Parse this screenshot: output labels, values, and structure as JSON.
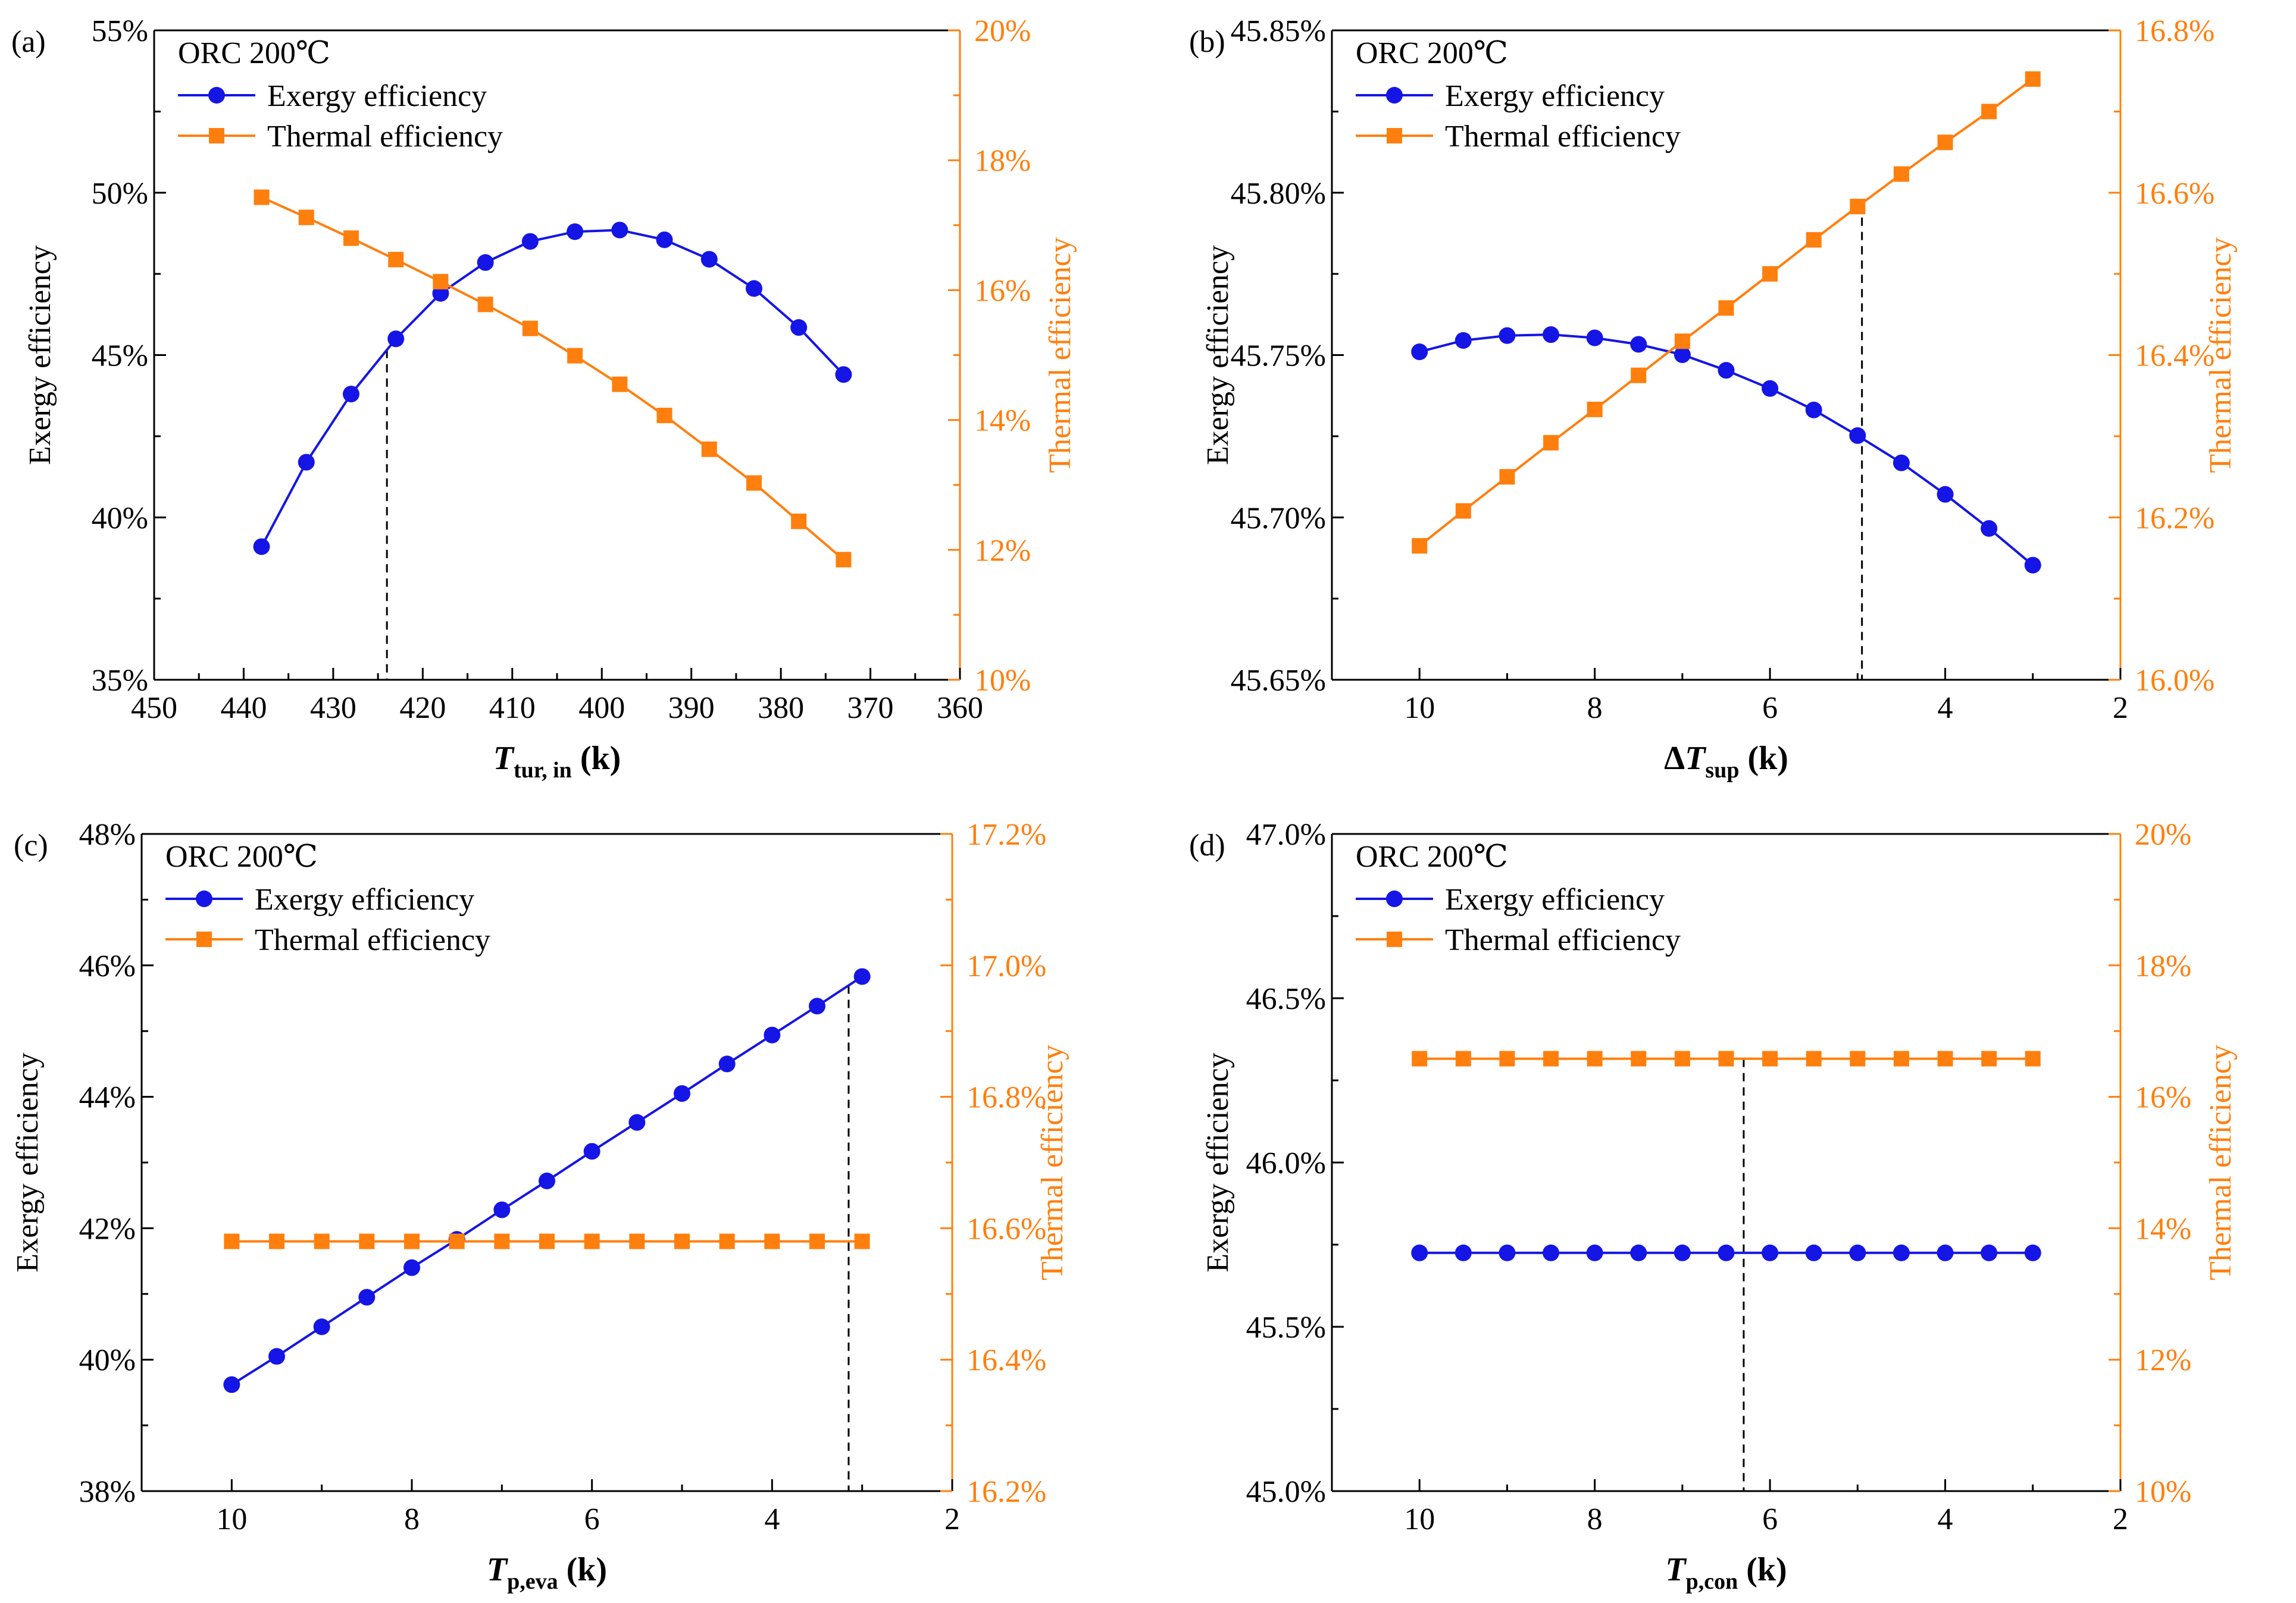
{
  "colors": {
    "exergy": "#1515e6",
    "thermal": "#ff7f0e",
    "axis": "#000000"
  },
  "chart_data": [
    {
      "type": "line",
      "panel_label": "(a)",
      "legend_title": "ORC 200℃",
      "legend": {
        "exergy": "Exergy efficiency",
        "thermal": "Thermal efficiency"
      },
      "xlabel": {
        "main": "T",
        "sub": "tur, in",
        "unit": "(k)",
        "prefix": ""
      },
      "ylabel": "Exergy efficiency",
      "y2label": "Thermal efficiency",
      "xlim": [
        450,
        360
      ],
      "xticks": [
        450,
        440,
        430,
        420,
        410,
        400,
        390,
        380,
        370,
        360
      ],
      "xtick_labels": [
        "450",
        "440",
        "430",
        "420",
        "410",
        "400",
        "390",
        "380",
        "370",
        "360"
      ],
      "ylim": [
        35,
        55
      ],
      "yticks": [
        35,
        40,
        45,
        50,
        55
      ],
      "ytick_labels": [
        "35%",
        "40%",
        "45%",
        "50%",
        "55%"
      ],
      "y2lim": [
        10,
        20
      ],
      "y2ticks": [
        10,
        12,
        14,
        16,
        18,
        20
      ],
      "y2tick_labels": [
        "10%",
        "12%",
        "14%",
        "16%",
        "18%",
        "20%"
      ],
      "dashed_x": 424,
      "dashed_top_series": "exergy",
      "series": [
        {
          "name": "Exergy efficiency",
          "key": "exergy",
          "axis": "left",
          "x": [
            438,
            433,
            428,
            423,
            418,
            413,
            408,
            403,
            398,
            393,
            388,
            383,
            378,
            373
          ],
          "values": [
            39.1,
            41.7,
            43.8,
            45.5,
            46.9,
            47.85,
            48.5,
            48.8,
            48.85,
            48.55,
            47.95,
            47.05,
            45.85,
            44.4
          ]
        },
        {
          "name": "Thermal efficiency",
          "key": "thermal",
          "axis": "right",
          "x": [
            438,
            433,
            428,
            423,
            418,
            413,
            408,
            403,
            398,
            393,
            388,
            383,
            378,
            373
          ],
          "values": [
            17.43,
            17.12,
            16.8,
            16.47,
            16.13,
            15.78,
            15.41,
            14.99,
            14.55,
            14.07,
            13.55,
            13.03,
            12.44,
            11.85
          ]
        }
      ]
    },
    {
      "type": "line",
      "panel_label": "(b)",
      "legend_title": "ORC 200℃",
      "legend": {
        "exergy": "Exergy efficiency",
        "thermal": "Thermal efficiency"
      },
      "xlabel": {
        "main": "T",
        "sub": "sup",
        "unit": "(k)",
        "prefix": "Δ"
      },
      "ylabel": "Exergy efficiency",
      "y2label": "Thermal efficiency",
      "xlim": [
        11,
        2
      ],
      "xticks": [
        10,
        8,
        6,
        4,
        2
      ],
      "xtick_labels": [
        "10",
        "8",
        "6",
        "4",
        "2"
      ],
      "ylim": [
        45.65,
        45.85
      ],
      "yticks": [
        45.65,
        45.7,
        45.75,
        45.8,
        45.85
      ],
      "ytick_labels": [
        "45.65%",
        "45.70%",
        "45.75%",
        "45.80%",
        "45.85%"
      ],
      "y2lim": [
        16.0,
        16.8
      ],
      "y2ticks": [
        16.0,
        16.2,
        16.4,
        16.6,
        16.8
      ],
      "y2tick_labels": [
        "16.0%",
        "16.2%",
        "16.4%",
        "16.6%",
        "16.8%"
      ],
      "dashed_x": 4.95,
      "dashed_top_series": "thermal",
      "series": [
        {
          "name": "Exergy efficiency",
          "key": "exergy",
          "axis": "left",
          "x": [
            10,
            9.5,
            9,
            8.5,
            8,
            7.5,
            7,
            6.5,
            6,
            5.5,
            5,
            4.5,
            4,
            3.5,
            3
          ],
          "values": [
            45.751,
            45.7545,
            45.756,
            45.7563,
            45.7553,
            45.7533,
            45.7501,
            45.7453,
            45.7397,
            45.7331,
            45.7252,
            45.7168,
            45.7071,
            45.6966,
            45.6853
          ]
        },
        {
          "name": "Thermal efficiency",
          "key": "thermal",
          "axis": "right",
          "x": [
            10,
            9.5,
            9,
            8.5,
            8,
            7.5,
            7,
            6.5,
            6,
            5.5,
            5,
            4.5,
            4,
            3.5,
            3
          ],
          "values": [
            16.165,
            16.208,
            16.25,
            16.292,
            16.333,
            16.375,
            16.417,
            16.458,
            16.5,
            16.542,
            16.583,
            16.623,
            16.662,
            16.7,
            16.74
          ]
        }
      ]
    },
    {
      "type": "line",
      "panel_label": "(c)",
      "legend_title": "ORC 200℃",
      "legend": {
        "exergy": "Exergy efficiency",
        "thermal": "Thermal efficiency"
      },
      "xlabel": {
        "main": "T",
        "sub": "p,eva",
        "unit": "(k)",
        "prefix": ""
      },
      "ylabel": "Exergy efficiency",
      "y2label": "Thermal efficiency",
      "xlim": [
        11,
        2
      ],
      "xticks": [
        10,
        8,
        6,
        4,
        2
      ],
      "xtick_labels": [
        "10",
        "8",
        "6",
        "4",
        "2"
      ],
      "ylim": [
        38,
        48
      ],
      "yticks": [
        38,
        40,
        42,
        44,
        46,
        48
      ],
      "ytick_labels": [
        "38%",
        "40%",
        "42%",
        "44%",
        "46%",
        "48%"
      ],
      "y2lim": [
        16.2,
        17.2
      ],
      "y2ticks": [
        16.2,
        16.4,
        16.6,
        16.8,
        17.0,
        17.2
      ],
      "y2tick_labels": [
        "16.2%",
        "16.4%",
        "16.6%",
        "16.8%",
        "17.0%",
        "17.2%"
      ],
      "dashed_x": 3.15,
      "dashed_top_series": "exergy",
      "series": [
        {
          "name": "Exergy efficiency",
          "key": "exergy",
          "axis": "left",
          "x": [
            10,
            9.5,
            9,
            8.5,
            8,
            7.5,
            7,
            6.5,
            6,
            5.5,
            5,
            4.5,
            4,
            3.5,
            3
          ],
          "values": [
            39.62,
            40.05,
            40.5,
            40.95,
            41.4,
            41.83,
            42.28,
            42.72,
            43.17,
            43.61,
            44.05,
            44.5,
            44.94,
            45.38,
            45.83
          ]
        },
        {
          "name": "Thermal efficiency",
          "key": "thermal",
          "axis": "right",
          "x": [
            10,
            9.5,
            9,
            8.5,
            8,
            7.5,
            7,
            6.5,
            6,
            5.5,
            5,
            4.5,
            4,
            3.5,
            3
          ],
          "values": [
            16.58,
            16.58,
            16.58,
            16.58,
            16.58,
            16.58,
            16.58,
            16.58,
            16.58,
            16.58,
            16.58,
            16.58,
            16.58,
            16.58,
            16.58
          ]
        }
      ]
    },
    {
      "type": "line",
      "panel_label": "(d)",
      "legend_title": "ORC 200℃",
      "legend": {
        "exergy": "Exergy efficiency",
        "thermal": "Thermal efficiency"
      },
      "xlabel": {
        "main": "T",
        "sub": "p,con",
        "unit": "(k)",
        "prefix": ""
      },
      "ylabel": "Exergy efficiency",
      "y2label": "Thermal efficiency",
      "xlim": [
        11,
        2
      ],
      "xticks": [
        10,
        8,
        6,
        4,
        2
      ],
      "xtick_labels": [
        "10",
        "8",
        "6",
        "4",
        "2"
      ],
      "ylim": [
        45.0,
        47.0
      ],
      "yticks": [
        45.0,
        45.5,
        46.0,
        46.5,
        47.0
      ],
      "ytick_labels": [
        "45.0%",
        "45.5%",
        "46.0%",
        "46.5%",
        "47.0%"
      ],
      "y2lim": [
        10,
        20
      ],
      "y2ticks": [
        10,
        12,
        14,
        16,
        18,
        20
      ],
      "y2tick_labels": [
        "10%",
        "12%",
        "14%",
        "16%",
        "18%",
        "20%"
      ],
      "dashed_x": 6.3,
      "dashed_top_series": "thermal",
      "series": [
        {
          "name": "Exergy efficiency",
          "key": "exergy",
          "axis": "left",
          "x": [
            10,
            9.5,
            9,
            8.5,
            8,
            7.5,
            7,
            6.5,
            6,
            5.5,
            5,
            4.5,
            4,
            3.5,
            3
          ],
          "values": [
            45.725,
            45.725,
            45.725,
            45.725,
            45.725,
            45.725,
            45.725,
            45.725,
            45.725,
            45.725,
            45.725,
            45.725,
            45.725,
            45.725,
            45.725
          ]
        },
        {
          "name": "Thermal efficiency",
          "key": "thermal",
          "axis": "right",
          "x": [
            10,
            9.5,
            9,
            8.5,
            8,
            7.5,
            7,
            6.5,
            6,
            5.5,
            5,
            4.5,
            4,
            3.5,
            3
          ],
          "values": [
            16.58,
            16.58,
            16.58,
            16.58,
            16.58,
            16.58,
            16.58,
            16.58,
            16.58,
            16.58,
            16.58,
            16.58,
            16.58,
            16.58,
            16.58
          ]
        }
      ]
    }
  ]
}
